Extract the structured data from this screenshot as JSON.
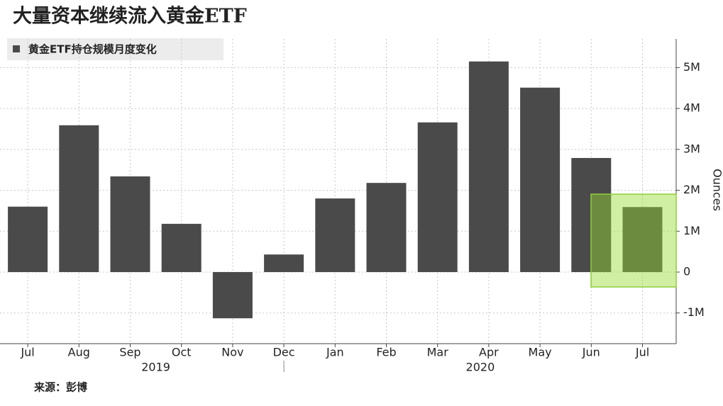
{
  "chart_data": {
    "type": "bar",
    "title": "大量资本继续流入黄金ETF",
    "legend": "黄金ETF持仓规模月度变化",
    "y_label": "Ounces",
    "source": "来源：彭博",
    "categories": [
      "Jul",
      "Aug",
      "Sep",
      "Oct",
      "Nov",
      "Dec",
      "Jan",
      "Feb",
      "Mar",
      "Apr",
      "May",
      "Jun",
      "Jul"
    ],
    "x_groups": [
      "2019",
      "2020"
    ],
    "values": [
      1600000,
      3590000,
      2340000,
      1180000,
      -1130000,
      430000,
      1800000,
      2180000,
      3660000,
      5150000,
      4510000,
      2790000,
      1590000
    ],
    "color": "#4a4a4a",
    "ylim": [
      -1750000,
      5700000
    ],
    "yticks": [
      {
        "value": -1000000,
        "label": "-1M"
      },
      0,
      {
        "value": 1000000,
        "label": "1M"
      },
      {
        "value": 2000000,
        "label": "2M"
      },
      {
        "value": 3000000,
        "label": "3M"
      },
      {
        "value": 4000000,
        "label": "4M"
      },
      {
        "value": 5000000,
        "label": "5M"
      }
    ],
    "grid": true
  }
}
